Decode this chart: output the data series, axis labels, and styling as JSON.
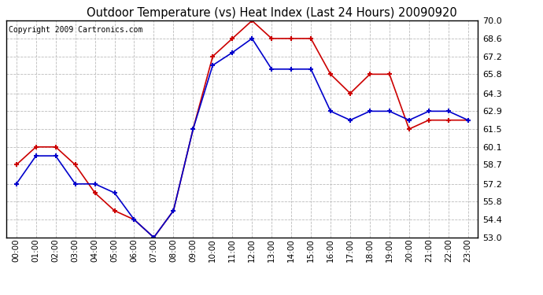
{
  "title": "Outdoor Temperature (vs) Heat Index (Last 24 Hours) 20090920",
  "copyright": "Copyright 2009 Cartronics.com",
  "hours": [
    "00:00",
    "01:00",
    "02:00",
    "03:00",
    "04:00",
    "05:00",
    "06:00",
    "07:00",
    "08:00",
    "09:00",
    "10:00",
    "11:00",
    "12:00",
    "13:00",
    "14:00",
    "15:00",
    "16:00",
    "17:00",
    "18:00",
    "19:00",
    "20:00",
    "21:00",
    "22:00",
    "23:00"
  ],
  "temp_red": [
    58.7,
    60.1,
    60.1,
    58.7,
    56.5,
    55.1,
    54.4,
    53.0,
    55.1,
    61.5,
    67.2,
    68.6,
    70.0,
    68.6,
    68.6,
    68.6,
    65.8,
    64.3,
    65.8,
    65.8,
    61.5,
    62.2,
    62.2,
    62.2
  ],
  "temp_blue": [
    57.2,
    59.4,
    59.4,
    57.2,
    57.2,
    56.5,
    54.4,
    53.0,
    55.1,
    61.5,
    66.5,
    67.5,
    68.6,
    66.2,
    66.2,
    66.2,
    62.9,
    62.2,
    62.9,
    62.9,
    62.2,
    62.9,
    62.9,
    62.2
  ],
  "ylim_min": 53.0,
  "ylim_max": 70.0,
  "yticks": [
    53.0,
    54.4,
    55.8,
    57.2,
    58.7,
    60.1,
    61.5,
    62.9,
    64.3,
    65.8,
    67.2,
    68.6,
    70.0
  ],
  "red_color": "#cc0000",
  "blue_color": "#0000cc",
  "bg_color": "#ffffff",
  "grid_color": "#bbbbbb",
  "title_fontsize": 10.5,
  "copyright_fontsize": 7,
  "tick_fontsize": 8,
  "xtick_fontsize": 7.5
}
